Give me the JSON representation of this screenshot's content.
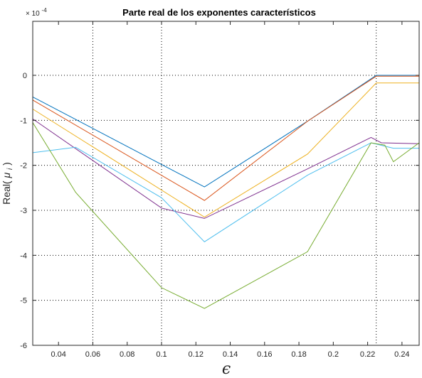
{
  "chart_data": {
    "type": "line",
    "title": "Parte real de los exponentes característicos",
    "xlabel": "ϵ",
    "ylabel_prefix": "Real(",
    "ylabel_mu": "μ",
    "ylabel_sub": "i",
    "ylabel_suffix": ")",
    "y_exponent": "× 10",
    "y_exponent_power": "-4",
    "xlim": [
      0.025,
      0.25
    ],
    "ylim": [
      -6,
      1.2
    ],
    "xticks": [
      0.04,
      0.06,
      0.08,
      0.1,
      0.12,
      0.14,
      0.16,
      0.18,
      0.2,
      0.22,
      0.24
    ],
    "xtick_labels": [
      "0.04",
      "0.06",
      "0.08",
      "0.1",
      "0.12",
      "0.14",
      "0.16",
      "0.18",
      "0.2",
      "0.22",
      "0.24"
    ],
    "yticks": [
      0,
      -1,
      -2,
      -3,
      -4,
      -5,
      -6
    ],
    "ytick_labels": [
      "0",
      "-1",
      "-2",
      "-3",
      "-4",
      "-5",
      "-6"
    ],
    "grid_x": [
      0.06,
      0.1,
      0.225
    ],
    "grid_y": [
      0,
      -1,
      -2,
      -3,
      -4,
      -5
    ],
    "grid": true,
    "series": [
      {
        "color": "#0072BD",
        "x": [
          0.025,
          0.125,
          0.185,
          0.225,
          0.25
        ],
        "y": [
          -0.48,
          -2.48,
          -1.02,
          0.0,
          0.0
        ]
      },
      {
        "color": "#D95319",
        "x": [
          0.025,
          0.125,
          0.185,
          0.225,
          0.25
        ],
        "y": [
          -0.55,
          -2.78,
          -1.02,
          -0.02,
          -0.02
        ]
      },
      {
        "color": "#EDB120",
        "x": [
          0.025,
          0.125,
          0.185,
          0.225,
          0.25
        ],
        "y": [
          -0.75,
          -3.15,
          -1.75,
          -0.17,
          -0.17
        ]
      },
      {
        "color": "#7E2F8E",
        "x": [
          0.025,
          0.1,
          0.125,
          0.185,
          0.222,
          0.228,
          0.25
        ],
        "y": [
          -0.97,
          -2.95,
          -3.18,
          -2.08,
          -1.38,
          -1.5,
          -1.52
        ]
      },
      {
        "color": "#4DBEEE",
        "x": [
          0.025,
          0.05,
          0.1,
          0.125,
          0.185,
          0.222,
          0.235,
          0.25
        ],
        "y": [
          -1.72,
          -1.6,
          -2.72,
          -3.7,
          -2.22,
          -1.5,
          -1.62,
          -1.62
        ]
      },
      {
        "color": "#77AC30",
        "x": [
          0.025,
          0.05,
          0.1,
          0.125,
          0.185,
          0.222,
          0.23,
          0.235,
          0.25
        ],
        "y": [
          -1.05,
          -2.6,
          -4.72,
          -5.18,
          -3.92,
          -1.5,
          -1.55,
          -1.92,
          -1.5
        ]
      }
    ]
  }
}
